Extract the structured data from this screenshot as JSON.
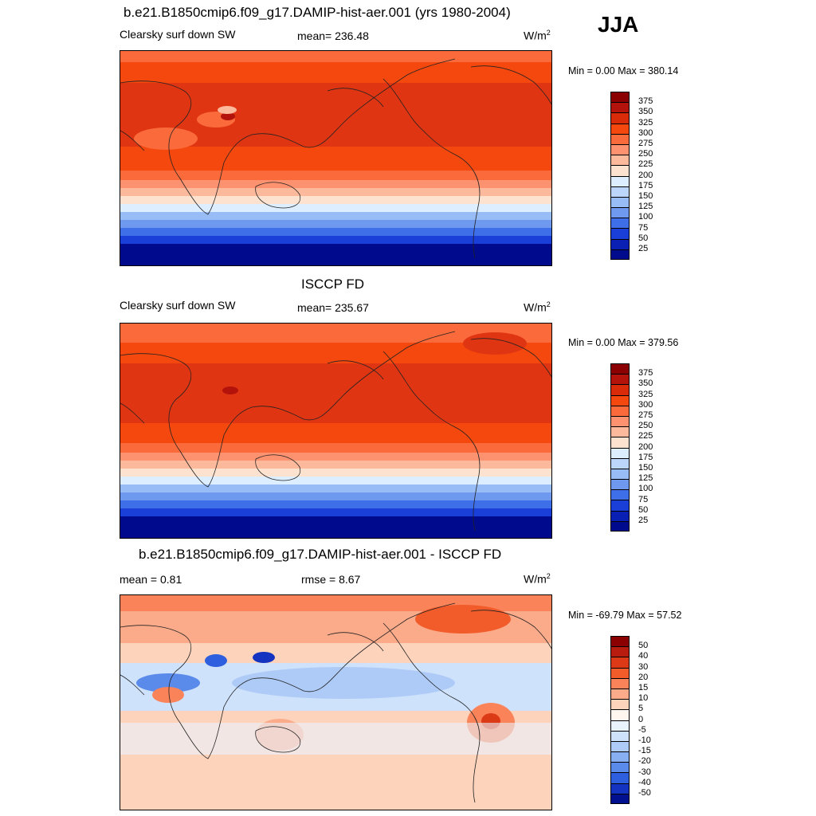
{
  "season": "JJA",
  "panels": [
    {
      "title": "b.e21.B1850cmip6.f09_g17.DAMIP-hist-aer.001 (yrs 1980-2004)",
      "left_label": "Clearsky surf down SW",
      "center_label": "mean= 236.48",
      "units": "W/m",
      "units_sup": "2",
      "minmax": "Min =   0.00 Max = 380.14",
      "colorbar": {
        "colors": [
          "#8b0000",
          "#b3130b",
          "#d92a0a",
          "#f4480e",
          "#fa6a3a",
          "#fc9270",
          "#fdb99c",
          "#fde3cf",
          "#dceeff",
          "#bcd6fb",
          "#98bcf5",
          "#6e99ef",
          "#3f6ee9",
          "#1a3ed8",
          "#0a20b4",
          "#000a8c"
        ],
        "labels": [
          "375",
          "350",
          "325",
          "300",
          "275",
          "250",
          "225",
          "200",
          "175",
          "150",
          "125",
          "100",
          "75",
          "50",
          "25"
        ]
      }
    },
    {
      "title": "ISCCP FD",
      "left_label": "Clearsky surf down SW",
      "center_label": "mean= 235.67",
      "units": "W/m",
      "units_sup": "2",
      "minmax": "Min =   0.00 Max = 379.56",
      "colorbar": {
        "colors": [
          "#8b0000",
          "#b3130b",
          "#d92a0a",
          "#f4480e",
          "#fa6a3a",
          "#fc9270",
          "#fdb99c",
          "#fde3cf",
          "#dceeff",
          "#bcd6fb",
          "#98bcf5",
          "#6e99ef",
          "#3f6ee9",
          "#1a3ed8",
          "#0a20b4",
          "#000a8c"
        ],
        "labels": [
          "375",
          "350",
          "325",
          "300",
          "275",
          "250",
          "225",
          "200",
          "175",
          "150",
          "125",
          "100",
          "75",
          "50",
          "25"
        ]
      }
    },
    {
      "title": "b.e21.B1850cmip6.f09_g17.DAMIP-hist-aer.001 - ISCCP FD",
      "left_label": "mean =   0.81",
      "center_label": "rmse =   8.67",
      "units": "W/m",
      "units_sup": "2",
      "minmax": "Min = -69.79 Max =  57.52",
      "colorbar": {
        "colors": [
          "#8b0000",
          "#b71c0f",
          "#dc3a16",
          "#f25c2a",
          "#fa8359",
          "#fcab8a",
          "#fdd3bc",
          "#fff6ef",
          "#e9f3fd",
          "#cfe2fb",
          "#aecbf7",
          "#87aff2",
          "#5a8aea",
          "#2e5fde",
          "#1433c0",
          "#00108e"
        ],
        "labels": [
          "50",
          "40",
          "30",
          "20",
          "15",
          "10",
          "5",
          "0",
          "-5",
          "-10",
          "-15",
          "-20",
          "-30",
          "-40",
          "-50"
        ]
      }
    }
  ]
}
